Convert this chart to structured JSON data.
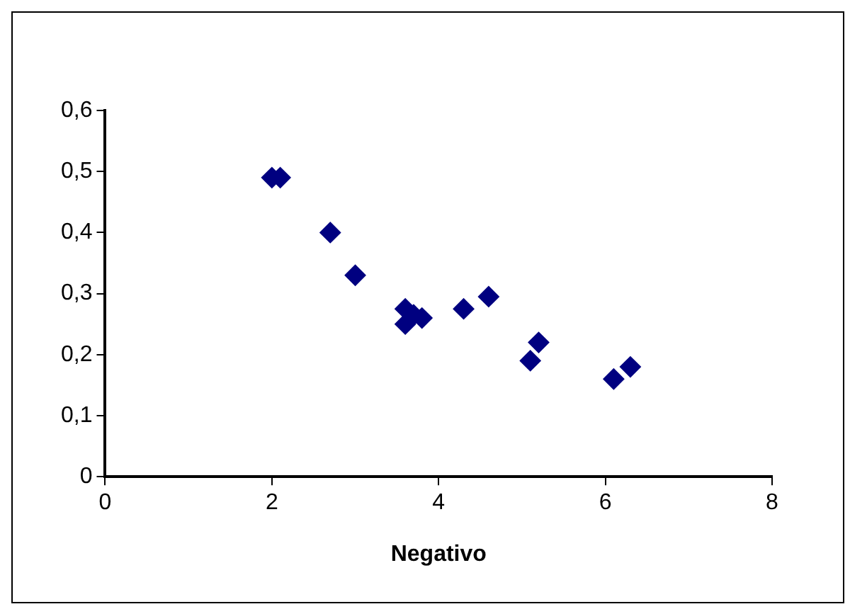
{
  "chart_data": {
    "type": "scatter",
    "xlabel": "Negativo",
    "x": [
      2.0,
      2.1,
      2.7,
      3.0,
      3.6,
      3.6,
      3.7,
      3.8,
      4.3,
      4.6,
      5.1,
      5.2,
      6.1,
      6.3
    ],
    "series": [
      {
        "color": "#000080",
        "values": [
          0.49,
          0.49,
          0.4,
          0.33,
          0.275,
          0.25,
          0.265,
          0.26,
          0.275,
          0.295,
          0.19,
          0.22,
          0.16,
          0.18
        ]
      }
    ],
    "xlim": [
      0,
      8
    ],
    "xticks": [
      0,
      2,
      4,
      6,
      8
    ],
    "ylim": [
      0,
      0.6
    ],
    "yticks": [
      0,
      {
        "value": 0.1,
        "label": "0,1"
      },
      {
        "value": 0.2,
        "label": "0,2"
      },
      {
        "value": 0.3,
        "label": "0,3"
      },
      {
        "value": 0.4,
        "label": "0,4"
      },
      {
        "value": 0.5,
        "label": "0,5"
      },
      {
        "value": 0.6,
        "label": "0,6"
      }
    ],
    "grid": false,
    "legend": false,
    "marker": "diamond"
  }
}
